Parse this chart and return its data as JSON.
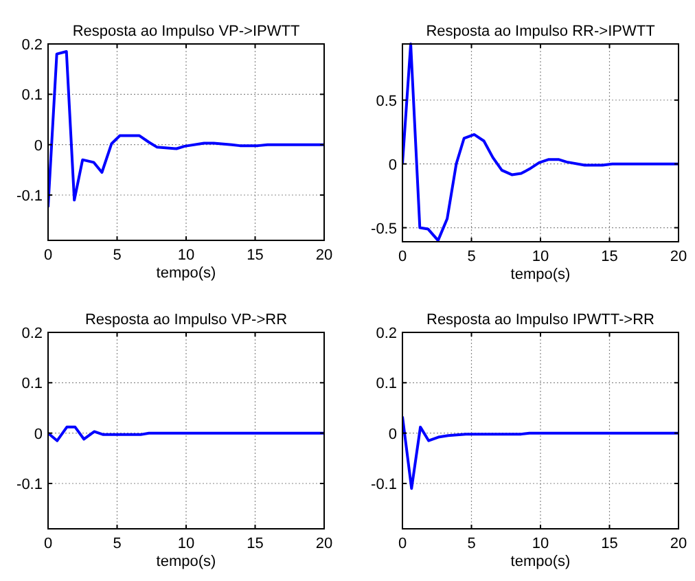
{
  "chart_data": [
    {
      "type": "line",
      "title": "Resposta ao Impulso VP->IPWTT",
      "xlabel": "tempo(s)",
      "xlim": [
        0,
        20
      ],
      "xticks": [
        0,
        5,
        10,
        15,
        20
      ],
      "ylim": [
        -0.19,
        0.2
      ],
      "yticks": [
        -0.1,
        0,
        0.1,
        0.2
      ],
      "grid": true,
      "series": [
        {
          "color": "#0000ff",
          "x": [
            0,
            0.63,
            1.33,
            1.9,
            2.5,
            3.3,
            3.9,
            4.6,
            5.2,
            6.6,
            7.3,
            7.9,
            9.3,
            9.9,
            11.3,
            12,
            13.3,
            13.9,
            15.2,
            15.9,
            20
          ],
          "values": [
            -0.124,
            0.18,
            0.185,
            -0.11,
            -0.03,
            -0.035,
            -0.055,
            0.002,
            0.018,
            0.018,
            0.005,
            -0.005,
            -0.008,
            -0.003,
            0.003,
            0.003,
            0,
            -0.002,
            -0.002,
            0,
            0
          ]
        }
      ]
    },
    {
      "type": "line",
      "title": "Resposta ao Impulso RR->IPWTT",
      "xlabel": "tempo(s)",
      "xlim": [
        0,
        20
      ],
      "xticks": [
        0,
        5,
        10,
        15,
        20
      ],
      "ylim": [
        -0.61,
        0.94
      ],
      "yticks": [
        -0.5,
        0,
        0.5
      ],
      "grid": true,
      "series": [
        {
          "color": "#0000ff",
          "x": [
            0,
            0.6,
            1.26,
            1.85,
            2.58,
            3.24,
            3.9,
            4.46,
            5.2,
            5.9,
            6.55,
            7.2,
            7.93,
            8.6,
            9.2,
            9.9,
            10.6,
            11.3,
            11.9,
            13.2,
            14.5,
            15.2,
            20
          ],
          "values": [
            0,
            0.94,
            -0.5,
            -0.51,
            -0.6,
            -0.43,
            0,
            0.2,
            0.23,
            0.18,
            0.05,
            -0.05,
            -0.085,
            -0.075,
            -0.04,
            0.01,
            0.035,
            0.035,
            0.015,
            -0.01,
            -0.01,
            0,
            0
          ]
        }
      ]
    },
    {
      "type": "line",
      "title": "Resposta ao Impulso VP->RR",
      "xlabel": "tempo(s)",
      "xlim": [
        0,
        20
      ],
      "xticks": [
        0,
        5,
        10,
        15,
        20
      ],
      "ylim": [
        -0.19,
        0.2
      ],
      "yticks": [
        -0.1,
        0,
        0.1,
        0.2
      ],
      "grid": true,
      "series": [
        {
          "color": "#0000ff",
          "x": [
            0,
            0.66,
            1.36,
            1.96,
            2.6,
            3.35,
            4,
            6.7,
            7.3,
            20
          ],
          "values": [
            0,
            -0.015,
            0.012,
            0.012,
            -0.012,
            0.003,
            -0.003,
            -0.003,
            0,
            0
          ]
        }
      ]
    },
    {
      "type": "line",
      "title": "Resposta ao Impulso IPWTT->RR",
      "xlabel": "tempo(s)",
      "xlim": [
        0,
        20
      ],
      "xticks": [
        0,
        5,
        10,
        15,
        20
      ],
      "ylim": [
        -0.19,
        0.2
      ],
      "yticks": [
        -0.1,
        0,
        0.1,
        0.2
      ],
      "grid": true,
      "series": [
        {
          "color": "#0000ff",
          "x": [
            0,
            0.66,
            1.3,
            1.9,
            2.6,
            3.3,
            4.6,
            8.6,
            9.2,
            20
          ],
          "values": [
            0.033,
            -0.11,
            0.012,
            -0.015,
            -0.008,
            -0.005,
            -0.002,
            -0.002,
            0,
            0
          ]
        }
      ]
    }
  ]
}
